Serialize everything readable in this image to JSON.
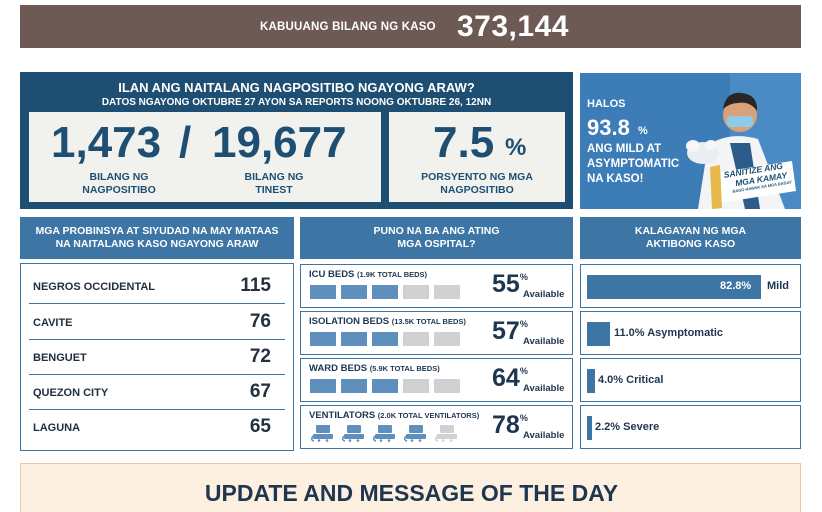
{
  "total": {
    "label": "KABUUANG BILANG NG KASO",
    "value": "373,144"
  },
  "positives": {
    "title": "ILAN ANG NAITALANG NAGPOSITIBO NGAYONG ARAW?",
    "subtitle": "DATOS NGAYONG OKTUBRE 27 AYON SA REPORTS NOONG OKTUBRE 26, 12NN",
    "positive_count": "1,473",
    "separator": "/",
    "tested_count": "19,677",
    "positive_label_1": "BILANG NG",
    "positive_label_2": "NAGPOSITIBO",
    "tested_label_1": "BILANG NG",
    "tested_label_2": "TINEST",
    "rate": "7.5",
    "rate_unit": "%",
    "rate_label_1": "PORSYENTO NG MGA",
    "rate_label_2": "NAGPOSITIBO"
  },
  "ad": {
    "halos": "HALOS",
    "pct": "93.8",
    "pct_unit": "%",
    "line1": "ANG MILD AT",
    "line2": "ASYMPTOMATIC",
    "line3": "NA KASO!",
    "sign1": "SANITIZE ANG",
    "sign2": "MGA KAMAY",
    "sign3": "BAGO HAWAK SA MGA BAGAY"
  },
  "provinces": {
    "header_1": "MGA PROBINSYA AT SIYUDAD NA MAY MATAAS",
    "header_2": "NA NAITALANG KASO NGAYONG ARAW",
    "rows": [
      {
        "name": "NEGROS OCCIDENTAL",
        "count": "115"
      },
      {
        "name": "CAVITE",
        "count": "76"
      },
      {
        "name": "BENGUET",
        "count": "72"
      },
      {
        "name": "QUEZON CITY",
        "count": "67"
      },
      {
        "name": "LAGUNA",
        "count": "65"
      }
    ]
  },
  "hospitals": {
    "header_1": "PUNO NA BA ANG ATING",
    "header_2": "MGA OSPITAL?",
    "available_label": "Available",
    "pct_sign": "%",
    "rows": [
      {
        "name": "ICU BEDS",
        "total": "(1.9K TOTAL BEDS)",
        "pct": "55",
        "filled_units": 3
      },
      {
        "name": "ISOLATION BEDS",
        "total": "(13.5K TOTAL BEDS)",
        "pct": "57",
        "filled_units": 3
      },
      {
        "name": "WARD BEDS",
        "total": "(5.9K TOTAL BEDS)",
        "pct": "64",
        "filled_units": 3
      },
      {
        "name": "VENTILATORS",
        "total": "(2.0K TOTAL VENTILATORS)",
        "pct": "78",
        "filled_units": 4
      }
    ]
  },
  "status": {
    "header_1": "KALAGAYAN NG MGA",
    "header_2": "AKTIBONG KASO",
    "rows": [
      {
        "label": "Mild",
        "pct_text": "82.8%",
        "value": 82.8
      },
      {
        "label": "11.0% Asymptomatic",
        "value": 11.0
      },
      {
        "label": "4.0% Critical",
        "value": 4.0
      },
      {
        "label": "2.2% Severe",
        "value": 2.2
      }
    ]
  },
  "update": {
    "title": "UPDATE AND MESSAGE OF THE DAY"
  },
  "colors": {
    "navy": "#1e4f73",
    "blue": "#3d75a5",
    "brown": "#6e5a55",
    "bar_on": "#5f8fbc",
    "bar_off": "#cfd1d3"
  }
}
